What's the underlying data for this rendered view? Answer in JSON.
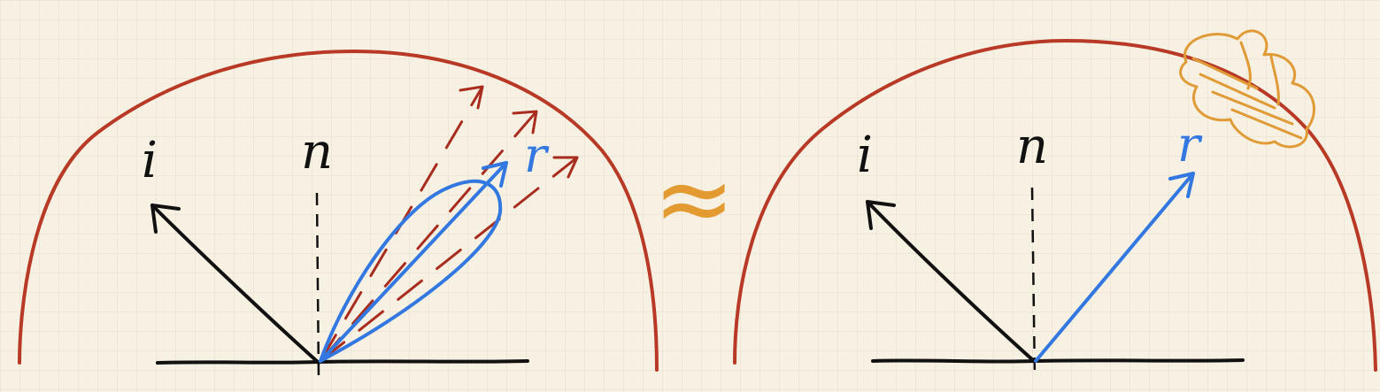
{
  "colors": {
    "paper": "#f7f1e3",
    "grid": "#e4dccb",
    "hemisphere": "#b83a26",
    "ink": "#111111",
    "reflection": "#3278e0",
    "samples": "#a92d1f",
    "approx_symbol": "#e29a31",
    "filtered_blob": "#e09a36"
  },
  "left_diagram": {
    "incident_label": "i",
    "normal_label": "n",
    "reflection_label": "r"
  },
  "approx_symbol": "≈",
  "right_diagram": {
    "incident_label": "i",
    "normal_label": "n",
    "reflection_label": "r"
  }
}
